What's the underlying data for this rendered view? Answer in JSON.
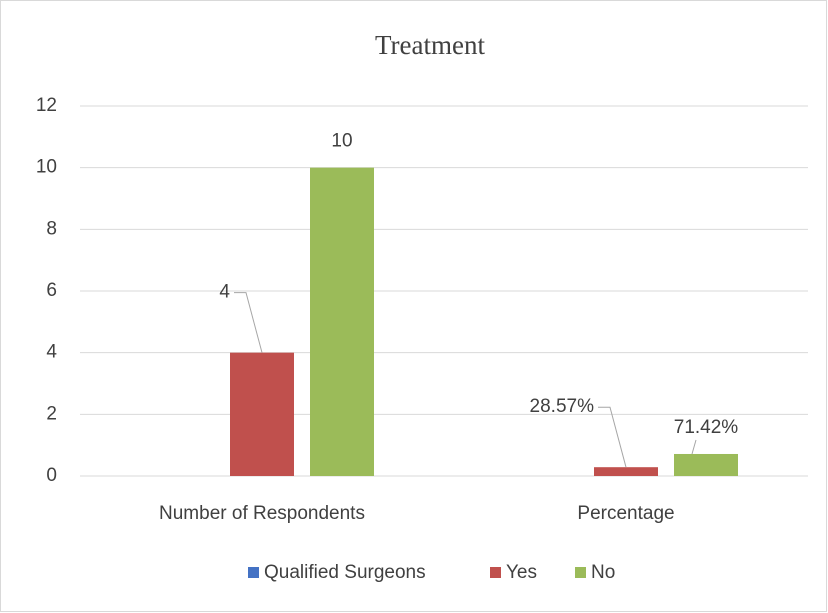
{
  "chart_data": {
    "type": "bar",
    "title": "Treatment",
    "categories": [
      "Number of Respondents",
      "Percentage"
    ],
    "series": [
      {
        "name": "Qualified Surgeons",
        "color": "#4472c4",
        "values": [
          null,
          null
        ]
      },
      {
        "name": "Yes",
        "color": "#c0504d",
        "values": [
          4,
          0.2857
        ],
        "value_labels": [
          "4",
          "28.57%"
        ]
      },
      {
        "name": "No",
        "color": "#9bbb59",
        "values": [
          10,
          0.7142
        ],
        "value_labels": [
          "10",
          "71.42%"
        ]
      }
    ],
    "ylim": [
      0,
      12
    ],
    "yticks": [
      0,
      2,
      4,
      6,
      8,
      10,
      12
    ],
    "grid": true,
    "legend": "bottom"
  }
}
